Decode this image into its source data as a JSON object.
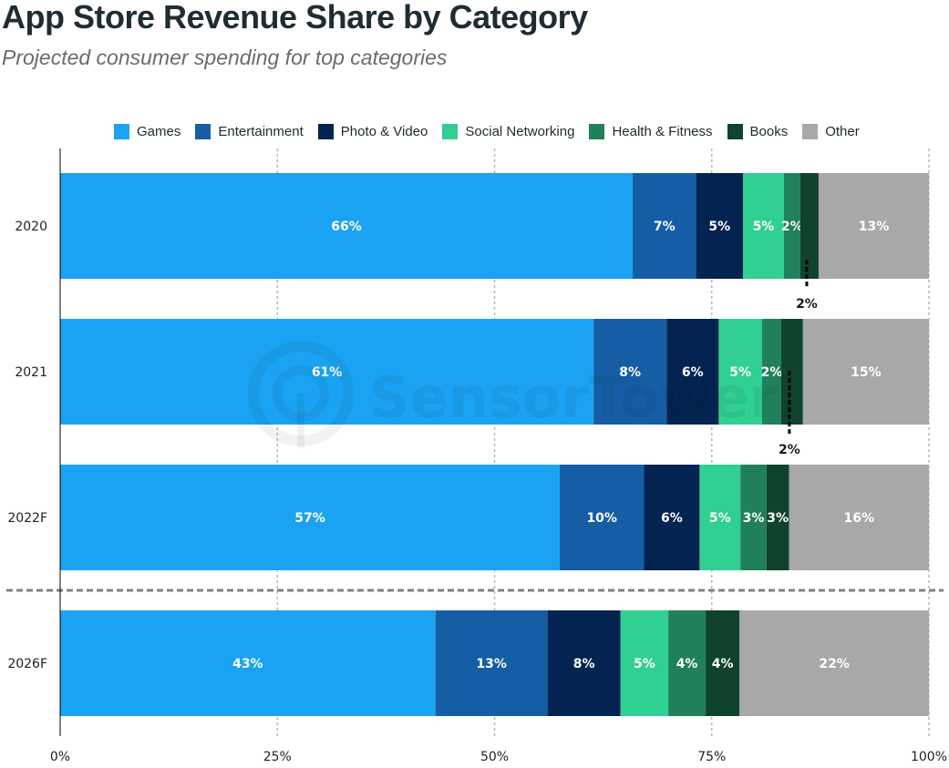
{
  "chart_data": {
    "type": "bar",
    "orientation": "horizontal",
    "stacked": true,
    "title": "App Store Revenue Share by Category",
    "subtitle": "Projected consumer spending for top categories",
    "xlabel": "",
    "ylabel": "",
    "xlim": [
      0,
      100
    ],
    "x_ticks": [
      "0%",
      "25%",
      "50%",
      "75%",
      "100%"
    ],
    "x_tick_values": [
      0,
      25,
      50,
      75,
      100
    ],
    "grid": "vertical dotted",
    "legend_position": "top",
    "categories": [
      "2020",
      "2021",
      "2022F",
      "2026F"
    ],
    "forecast_separator_after": "2022F",
    "series": [
      {
        "name": "Games",
        "color": "#1aa3f2",
        "values": [
          65.9,
          61.4,
          57.5,
          43.2
        ],
        "labels": [
          "66%",
          "61%",
          "57%",
          "43%"
        ]
      },
      {
        "name": "Entertainment",
        "color": "#155ea5",
        "values": [
          7.3,
          8.4,
          9.7,
          12.9
        ],
        "labels": [
          "7%",
          "8%",
          "10%",
          "13%"
        ]
      },
      {
        "name": "Photo & Video",
        "color": "#032350",
        "values": [
          5.4,
          6.0,
          6.4,
          8.4
        ],
        "labels": [
          "5%",
          "6%",
          "6%",
          "8%"
        ]
      },
      {
        "name": "Social Networking",
        "color": "#30cf92",
        "values": [
          4.7,
          5.0,
          4.7,
          5.5
        ],
        "labels": [
          "5%",
          "5%",
          "5%",
          "5%"
        ]
      },
      {
        "name": "Health & Fitness",
        "color": "#21805c",
        "values": [
          1.9,
          2.2,
          3.0,
          4.3
        ],
        "labels": [
          "2%",
          "2%",
          "3%",
          "4%"
        ]
      },
      {
        "name": "Books",
        "color": "#0f432e",
        "values": [
          2.1,
          2.5,
          2.6,
          3.9
        ],
        "labels": [
          "2%",
          "2%",
          "3%",
          "4%"
        ],
        "callout_rows": [
          "2020",
          "2021"
        ]
      },
      {
        "name": "Other",
        "color": "#a8a8a8",
        "values": [
          12.7,
          14.5,
          16.1,
          21.8
        ],
        "labels": [
          "13%",
          "15%",
          "16%",
          "22%"
        ]
      }
    ]
  },
  "watermark": "SensorTower"
}
